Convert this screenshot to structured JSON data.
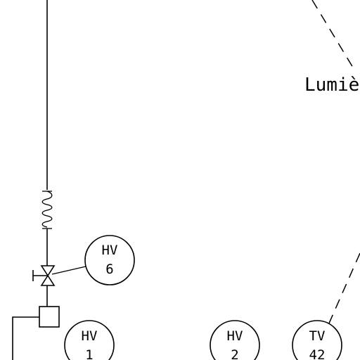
{
  "diagram": {
    "label_text": "Lumiè",
    "instruments": [
      {
        "id": "hv6",
        "code": "HV",
        "number": "6"
      },
      {
        "id": "hv1",
        "code": "HV",
        "number": "1"
      },
      {
        "id": "hv2",
        "code": "HV",
        "number": "2"
      },
      {
        "id": "tv42",
        "code": "TV",
        "number": "42"
      }
    ],
    "colors": {
      "line": "#000000",
      "background": "#ffffff"
    }
  }
}
